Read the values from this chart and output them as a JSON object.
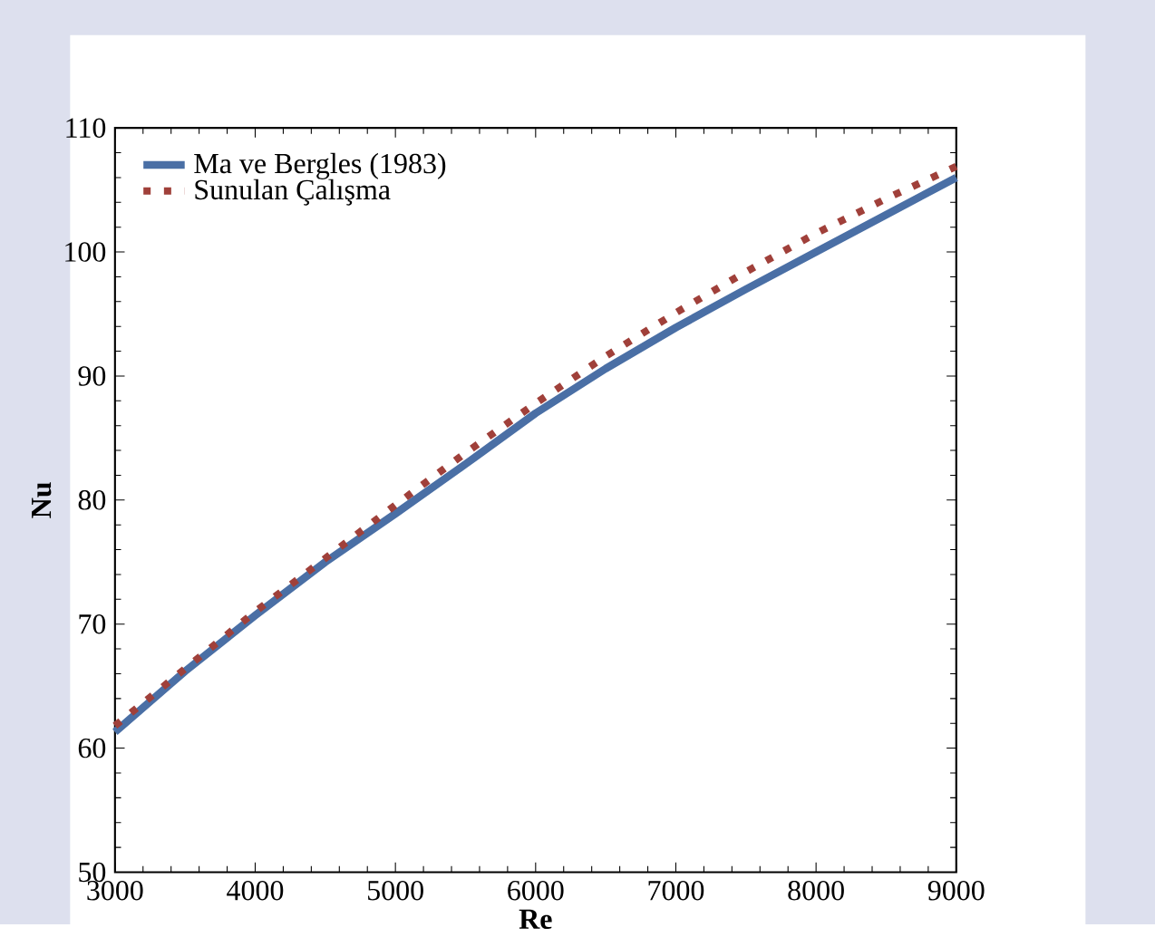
{
  "chart_data": {
    "type": "line",
    "xlabel": "Re",
    "ylabel": "Nu",
    "x": [
      3000,
      3500,
      4000,
      4500,
      5000,
      5500,
      6000,
      6500,
      7000,
      7500,
      8000,
      8500,
      9000
    ],
    "series": [
      {
        "name": "Ma ve Bergles (1983)",
        "color": "#4a6fa5",
        "line_style": "solid",
        "values": [
          61.3,
          66.2,
          70.7,
          75.0,
          78.9,
          82.9,
          87.0,
          90.6,
          93.9,
          97.0,
          100.0,
          103.0,
          106.0
        ]
      },
      {
        "name": "Sunulan Çalışma",
        "color": "#a0403a",
        "line_style": "dotted",
        "values": [
          61.8,
          66.4,
          71.0,
          75.3,
          79.6,
          83.8,
          87.8,
          91.6,
          95.1,
          98.4,
          101.5,
          104.3,
          106.9
        ]
      }
    ],
    "xlim": [
      3000,
      9000
    ],
    "xticks": [
      3000,
      4000,
      5000,
      6000,
      7000,
      8000,
      9000
    ],
    "ylim": [
      50,
      110
    ],
    "yticks": [
      50,
      60,
      70,
      80,
      90,
      100,
      110
    ],
    "legend": "top left",
    "grid": false,
    "marker": "none"
  }
}
